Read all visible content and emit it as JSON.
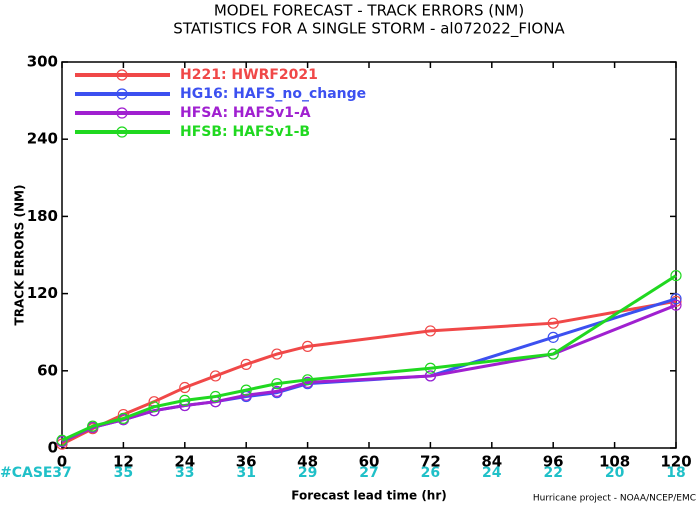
{
  "chart_data": {
    "type": "line",
    "title": "MODEL FORECAST - TRACK ERRORS (NM)",
    "subtitle": "STATISTICS FOR A SINGLE STORM - al072022_FIONA",
    "x_label": "Forecast lead time (hr)",
    "y_label": "TRACK ERRORS (NM)",
    "credit": "Hurricane project - NOAA/NCEP/EMC",
    "case_label": "#CASE",
    "case_counts": [
      37,
      35,
      33,
      31,
      29,
      27,
      26,
      24,
      22,
      20,
      18
    ],
    "x": [
      0,
      6,
      12,
      18,
      24,
      30,
      36,
      42,
      48,
      72,
      96,
      120
    ],
    "xlim": [
      0,
      120
    ],
    "xticks": [
      0,
      12,
      24,
      36,
      48,
      60,
      72,
      84,
      96,
      108,
      120
    ],
    "ylim": [
      0,
      300
    ],
    "yticks": [
      0,
      60,
      120,
      180,
      240,
      300
    ],
    "legend": "upper left",
    "series": [
      {
        "name": "H221: HWRF2021",
        "color": "#f04848",
        "values": [
          3,
          15,
          26,
          36,
          47,
          56,
          65,
          73,
          79,
          91,
          97,
          114
        ]
      },
      {
        "name": "HG16: HAFS_no_change",
        "color": "#3c50f0",
        "values": [
          5,
          16,
          22,
          29,
          33,
          36,
          40,
          43,
          50,
          56,
          86,
          116
        ]
      },
      {
        "name": "HFSA: HAFSv1-A",
        "color": "#a020d0",
        "values": [
          5,
          16,
          22,
          29,
          33,
          36,
          41,
          44,
          51,
          56,
          73,
          111
        ]
      },
      {
        "name": "HFSB: HAFSv1-B",
        "color": "#20d820",
        "values": [
          6,
          17,
          23,
          32,
          37,
          40,
          45,
          50,
          53,
          62,
          73,
          134
        ]
      }
    ]
  }
}
